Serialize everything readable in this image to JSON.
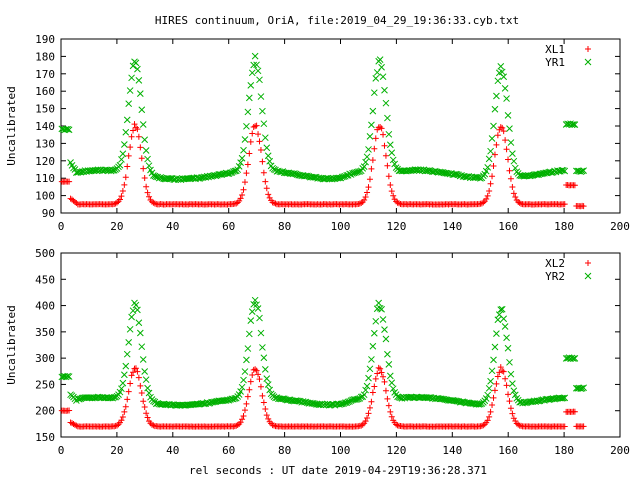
{
  "title": "HIRES continuum, OriA, file:2019_04_29_19:36:33.cyb.txt",
  "xlabel": "rel seconds : UT date 2019-04-29T19:36:28.371",
  "colors": {
    "red": "#ff0000",
    "green": "#00b000"
  },
  "chart_data": [
    {
      "type": "scatter",
      "ylabel": "Uncalibrated",
      "xlim": [
        0,
        200
      ],
      "ylim": [
        90,
        190
      ],
      "xticks": [
        "0",
        "20",
        "40",
        "60",
        "80",
        "100",
        "120",
        "140",
        "160",
        "180",
        "200"
      ],
      "yticks": [
        "90",
        "100",
        "110",
        "120",
        "130",
        "140",
        "150",
        "160",
        "170",
        "180",
        "190"
      ],
      "legend_position": "top-right",
      "series": [
        {
          "name": "XL1",
          "marker": "plus",
          "color": "#ff0000",
          "base": 95,
          "peak": 140,
          "pre_level": 108,
          "post_level": 106,
          "tail_level": 94
        },
        {
          "name": "YR1",
          "marker": "cross",
          "color": "#00b000",
          "base": 112,
          "peak": 176,
          "pre_level": 138,
          "post_level": 141,
          "tail_level": 114
        }
      ],
      "peaks_x": [
        26.5,
        69.5,
        114,
        157.5
      ]
    },
    {
      "type": "scatter",
      "ylabel": "Uncalibrated",
      "xlim": [
        0,
        200
      ],
      "ylim": [
        150,
        500
      ],
      "xticks": [
        "0",
        "20",
        "40",
        "60",
        "80",
        "100",
        "120",
        "140",
        "160",
        "180",
        "200"
      ],
      "yticks": [
        "150",
        "200",
        "250",
        "300",
        "350",
        "400",
        "450",
        "500"
      ],
      "legend_position": "top-right",
      "series": [
        {
          "name": "XL2",
          "marker": "plus",
          "color": "#ff0000",
          "base": 170,
          "peak": 280,
          "pre_level": 200,
          "post_level": 198,
          "tail_level": 170
        },
        {
          "name": "YR2",
          "marker": "cross",
          "color": "#00b000",
          "base": 218,
          "peak": 400,
          "pre_level": 265,
          "post_level": 300,
          "tail_level": 243
        }
      ],
      "peaks_x": [
        26.5,
        69.5,
        114,
        157.5
      ]
    }
  ]
}
